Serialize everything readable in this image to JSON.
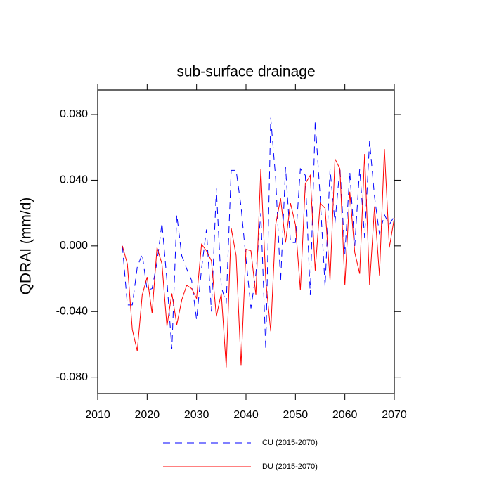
{
  "chart_data": {
    "type": "line",
    "title": "sub-surface drainage",
    "ylabel": "QDRAI  (mm/d)",
    "x": [
      2015,
      2016,
      2017,
      2018,
      2019,
      2020,
      2021,
      2022,
      2023,
      2024,
      2025,
      2026,
      2027,
      2028,
      2029,
      2030,
      2031,
      2032,
      2033,
      2034,
      2035,
      2036,
      2037,
      2038,
      2039,
      2040,
      2041,
      2042,
      2043,
      2044,
      2045,
      2046,
      2047,
      2048,
      2049,
      2050,
      2051,
      2052,
      2053,
      2054,
      2055,
      2056,
      2057,
      2058,
      2059,
      2060,
      2061,
      2062,
      2063,
      2064,
      2065,
      2066,
      2067,
      2068,
      2069,
      2070
    ],
    "series": [
      {
        "name": "CU (2015-2070)",
        "color": "#0000ff",
        "dashed": true,
        "values": [
          0,
          -0.036,
          -0.036,
          -0.013,
          -0.005,
          -0.027,
          -0.026,
          -0.01,
          0.014,
          -0.021,
          -0.063,
          0.019,
          -0.006,
          -0.014,
          -0.021,
          -0.045,
          -0.014,
          0.01,
          -0.04,
          0.035,
          -0.025,
          -0.035,
          0.046,
          0.046,
          0.024,
          -0.008,
          -0.038,
          -0.017,
          0.02,
          -0.063,
          0.078,
          0.041,
          -0.022,
          0.048,
          0.002,
          0.002,
          0.047,
          0.043,
          -0.03,
          0.076,
          0.03,
          -0.025,
          0.047,
          0.014,
          0.048,
          -0.005,
          0.045,
          0.0,
          0.047,
          0.005,
          0.064,
          0.03,
          0.007,
          0.019,
          0.013,
          0.018
        ]
      },
      {
        "name": "DU (2015-2070)",
        "color": "#ff0000",
        "dashed": false,
        "values": [
          0,
          -0.011,
          -0.051,
          -0.064,
          -0.03,
          -0.019,
          -0.041,
          -0.001,
          -0.011,
          -0.049,
          -0.029,
          -0.048,
          -0.033,
          -0.024,
          -0.026,
          -0.032,
          0.001,
          -0.003,
          -0.009,
          -0.043,
          -0.029,
          -0.074,
          0.011,
          -0.006,
          -0.073,
          -0.002,
          -0.003,
          -0.03,
          0.047,
          -0.021,
          -0.052,
          0.013,
          0.029,
          0.002,
          0.026,
          0.013,
          -0.027,
          0.038,
          0.043,
          -0.015,
          0.026,
          0.023,
          -0.021,
          0.053,
          0.047,
          -0.024,
          0.033,
          -0.004,
          -0.017,
          0.056,
          -0.024,
          0.024,
          -0.018,
          0.059,
          -0.001,
          0.017
        ]
      }
    ],
    "xlim": [
      2010,
      2070
    ],
    "xticks": [
      2010,
      2020,
      2030,
      2040,
      2050,
      2060,
      2070
    ],
    "ylim": [
      -0.09,
      0.095
    ],
    "yticks": [
      {
        "value": -0.08,
        "label": "-0.080"
      },
      {
        "value": -0.04,
        "label": "-0.040"
      },
      {
        "value": 0,
        "label": "0.000"
      },
      {
        "value": 0.04,
        "label": "0.040"
      },
      {
        "value": 0.08,
        "label": "0.080"
      }
    ],
    "grid": false,
    "legend": "bottom"
  }
}
